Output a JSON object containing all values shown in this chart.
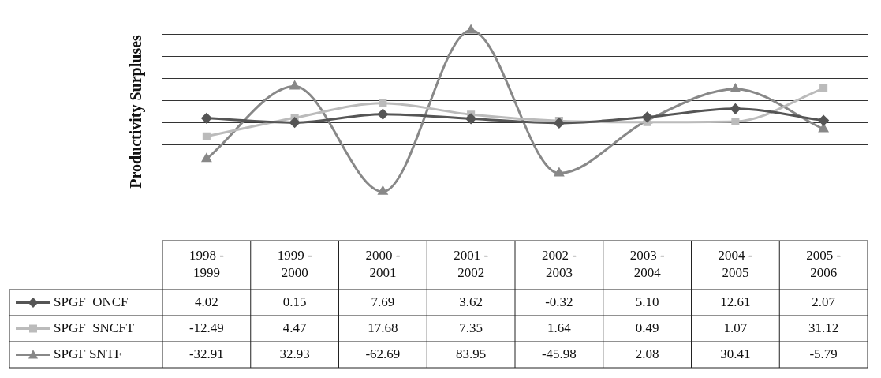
{
  "chart_data": {
    "type": "line",
    "ylabel": "Productivity Surpluses",
    "categories": [
      "1998 - 1999",
      "1999 - 2000",
      "2000 - 2001",
      "2001 - 2002",
      "2002 - 2003",
      "2003 - 2004",
      "2004 - 2005",
      "2005 - 2006"
    ],
    "series": [
      {
        "name": "SPGF  ONCF",
        "color": "#555555",
        "marker": "diamond",
        "values": [
          4.02,
          0.15,
          7.69,
          3.62,
          -0.32,
          5.1,
          12.61,
          2.07
        ],
        "value_labels": [
          "4.02",
          "0.15",
          "7.69",
          "3.62",
          "-0.32",
          "5.10",
          "12.61",
          "2.07"
        ]
      },
      {
        "name": "SPGF  SNCFT",
        "color": "#bbbbbb",
        "marker": "square",
        "values": [
          -12.49,
          4.47,
          17.68,
          7.35,
          1.64,
          0.49,
          1.07,
          31.12
        ],
        "value_labels": [
          "-12.49",
          "4.47",
          "17.68",
          "7.35",
          "1.64",
          "0.49",
          "1.07",
          "31.12"
        ]
      },
      {
        "name": "SPGF SNTF",
        "color": "#888888",
        "marker": "triangle",
        "values": [
          -32.91,
          32.93,
          -62.69,
          83.95,
          -45.98,
          2.08,
          30.41,
          -5.79
        ],
        "value_labels": [
          "-32.91",
          "32.93",
          "-62.69",
          "83.95",
          "-45.98",
          "2.08",
          "30.41",
          "-5.79"
        ]
      }
    ],
    "yticks": [
      {
        "value": -60,
        "label": null
      },
      {
        "value": -40,
        "label": null
      },
      {
        "value": -20,
        "label": null
      },
      {
        "value": 0,
        "label": null
      },
      {
        "value": 20,
        "label": null
      },
      {
        "value": 40,
        "label": null
      },
      {
        "value": 60,
        "label": null
      },
      {
        "value": 80,
        "label": null
      }
    ],
    "grid": "y",
    "tick_labels": "x",
    "legend": "bottom"
  }
}
